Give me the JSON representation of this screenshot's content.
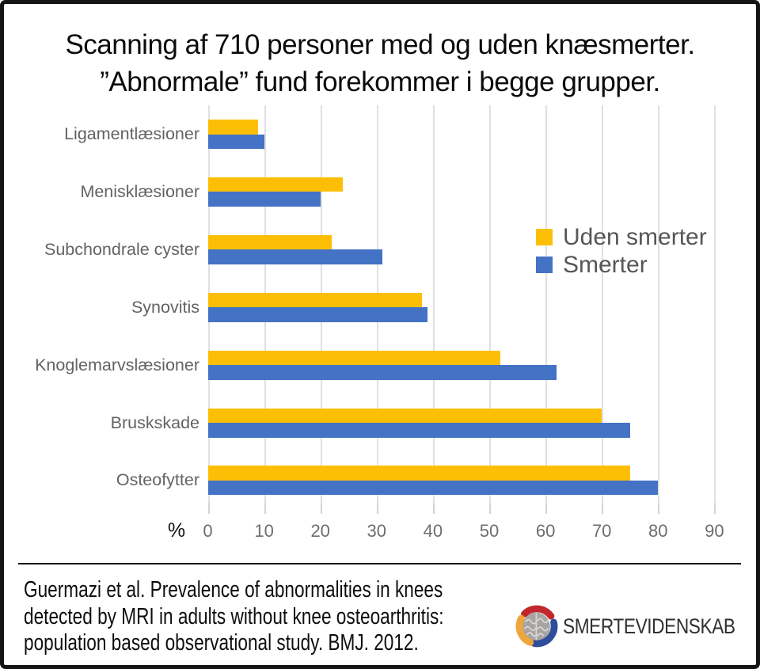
{
  "title": {
    "line1": "Scanning af 710 personer med og uden knæsmerter.",
    "line2": "”Abnormale” fund forekommer i begge grupper."
  },
  "chart_data": {
    "type": "bar",
    "orientation": "horizontal",
    "title": "Scanning af 710 personer med og uden knæsmerter. ”Abnormale” fund forekommer i begge grupper.",
    "categories": [
      "Ligamentlæsioner",
      "Menisklæsioner",
      "Subchondrale cyster",
      "Synovitis",
      "Knoglemarvslæsioner",
      "Bruskskade",
      "Osteofytter"
    ],
    "series": [
      {
        "name": "Uden smerter",
        "color": "#FCBF05",
        "values": [
          9,
          24,
          22,
          38,
          52,
          70,
          75
        ]
      },
      {
        "name": "Smerter",
        "color": "#4472C4",
        "values": [
          10,
          20,
          31,
          39,
          62,
          75,
          80
        ]
      }
    ],
    "x_axis": {
      "label": "%",
      "ticks": [
        0,
        10,
        20,
        30,
        40,
        50,
        60,
        70,
        80,
        90
      ],
      "min": 0,
      "max": 95
    },
    "grid": true,
    "legend_position": "upper-right"
  },
  "footer": {
    "citation_lines": [
      "Guermazi et al. Prevalence of abnormalities in knees",
      "detected by MRI in adults without knee osteoarthritis:",
      "population based observational study. BMJ. 2012."
    ],
    "logo_text": "SMERTEVIDENSKAB"
  },
  "colors": {
    "bar_uden_smerter": "#FCBF05",
    "bar_smerter": "#4472C4",
    "gridline": "#E0E0E0",
    "label_gray": "#636363",
    "frame_border": "#141414",
    "logo_red": "#C1272D",
    "logo_blue": "#2E4D9B",
    "logo_yellow": "#EFA63C",
    "logo_brain_gray": "#A7A4A1"
  }
}
